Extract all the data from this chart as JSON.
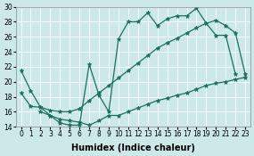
{
  "xlabel": "Humidex (Indice chaleur)",
  "bg_color": "#cce8e8",
  "line_color": "#1a7060",
  "xlim": [
    -0.5,
    23.5
  ],
  "ylim": [
    14,
    30
  ],
  "xticks": [
    0,
    1,
    2,
    3,
    4,
    5,
    6,
    7,
    8,
    9,
    10,
    11,
    12,
    13,
    14,
    15,
    16,
    17,
    18,
    19,
    20,
    21,
    22,
    23
  ],
  "yticks": [
    14,
    16,
    18,
    20,
    22,
    24,
    26,
    28,
    30
  ],
  "line1_x": [
    0,
    1,
    2,
    3,
    4,
    5,
    6,
    7,
    8,
    9,
    10,
    11,
    12,
    13,
    14,
    15,
    16,
    17,
    18,
    19,
    20,
    21,
    22
  ],
  "line1_y": [
    21.5,
    18.8,
    16.6,
    15.5,
    14.5,
    14.2,
    14.2,
    22.3,
    18.2,
    16.0,
    25.7,
    28.0,
    28.0,
    29.2,
    27.5,
    28.4,
    28.8,
    28.8,
    29.8,
    27.8,
    26.2,
    26.2,
    21.0
  ],
  "line2_x": [
    0,
    1,
    2,
    3,
    4,
    5,
    6,
    7,
    8,
    9,
    10,
    11,
    12,
    13,
    14,
    15,
    16,
    17,
    18,
    19,
    20,
    21,
    22,
    23
  ],
  "line2_y": [
    18.5,
    16.7,
    16.6,
    16.2,
    16.0,
    16.0,
    16.4,
    17.5,
    18.5,
    19.5,
    20.5,
    21.5,
    22.5,
    23.5,
    24.5,
    25.2,
    25.8,
    26.5,
    27.2,
    27.8,
    28.2,
    27.5,
    26.5,
    21.0
  ],
  "line3_x": [
    2,
    3,
    4,
    5,
    6,
    7,
    8,
    9,
    10,
    11,
    12,
    13,
    14,
    15,
    16,
    17,
    18,
    19,
    20,
    21,
    22,
    23
  ],
  "line3_y": [
    16.0,
    15.5,
    15.0,
    14.8,
    14.6,
    14.2,
    14.8,
    15.5,
    15.5,
    16.0,
    16.5,
    17.0,
    17.5,
    17.8,
    18.2,
    18.5,
    19.0,
    19.5,
    19.8,
    20.0,
    20.3,
    20.6
  ],
  "marker": "*",
  "markersize": 3.5,
  "linewidth": 0.9,
  "xlabel_fontsize": 7,
  "tick_fontsize": 5.5
}
